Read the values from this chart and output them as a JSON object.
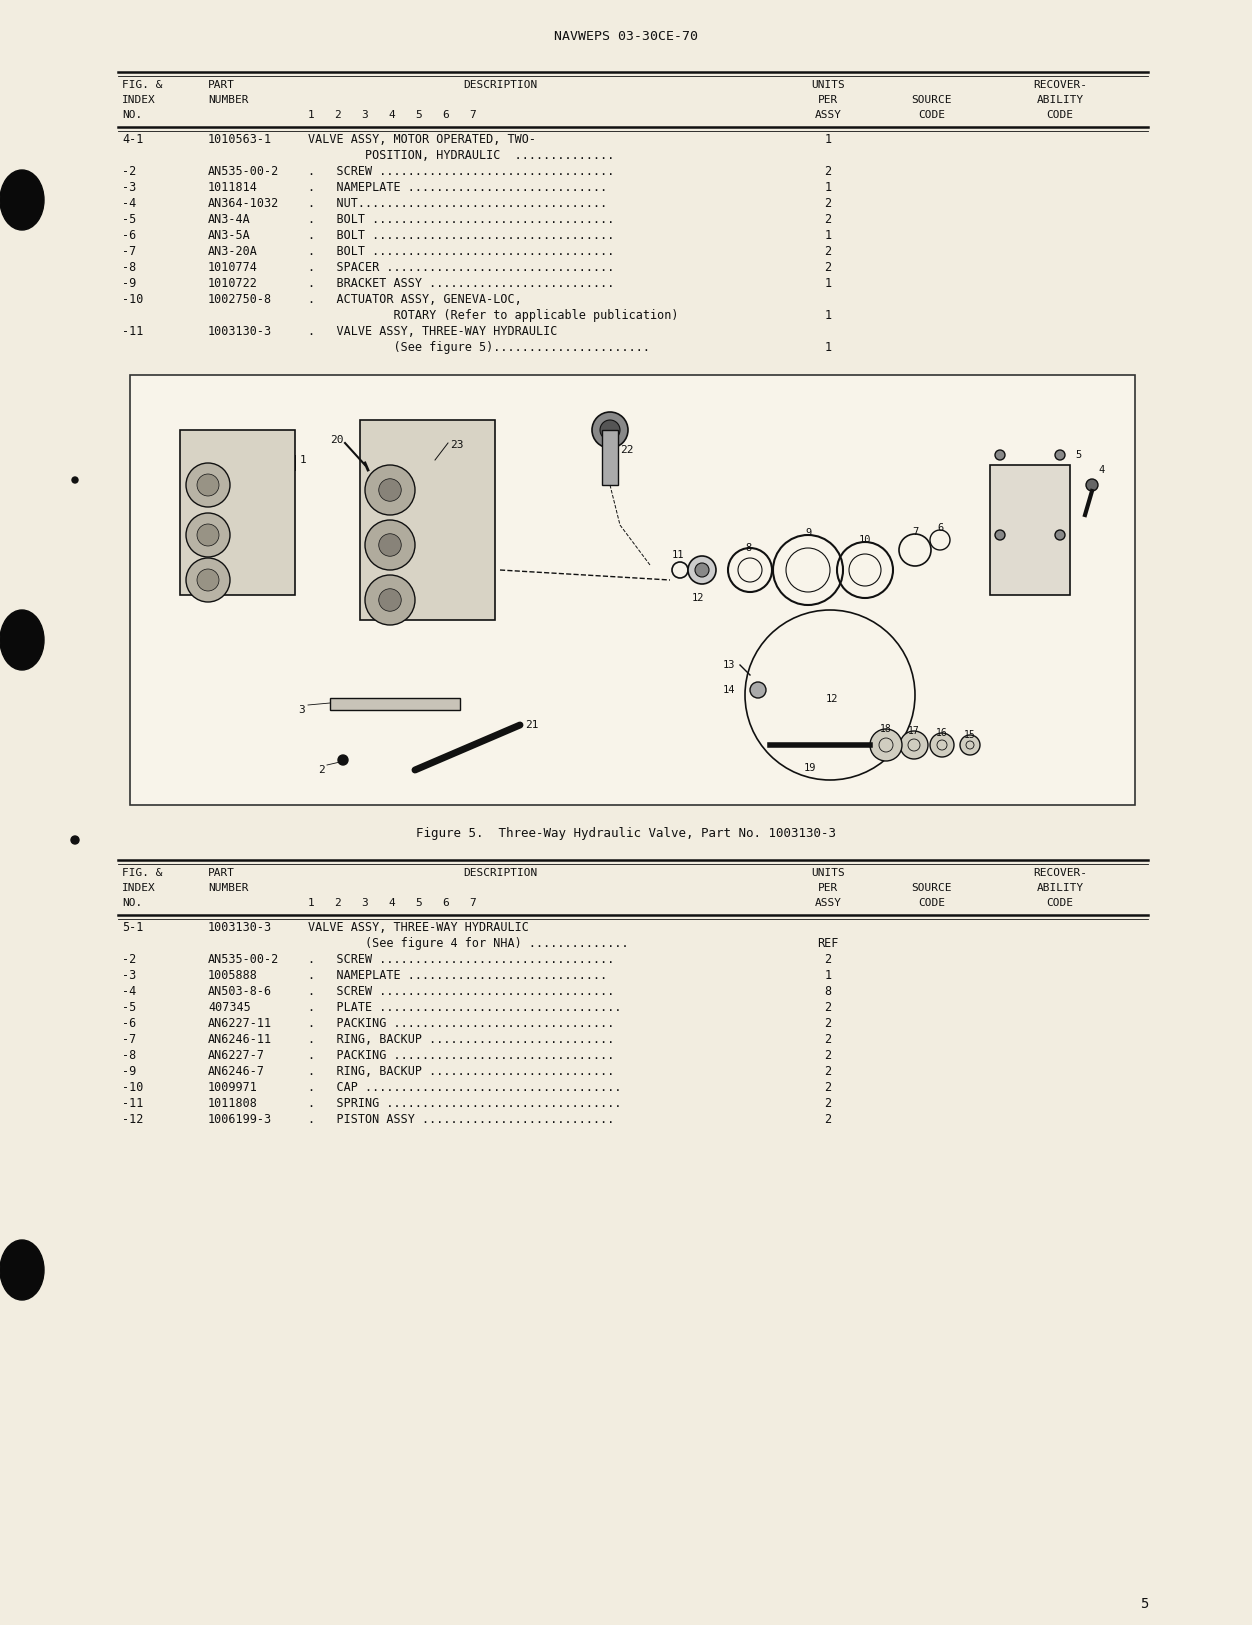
{
  "page_header": "NAVWEPS 03-30CE-70",
  "page_number": "5",
  "bg_color": "#f2ede0",
  "text_color": "#111111",
  "figure_caption": "Figure 5.  Three-Way Hydraulic Valve, Part No. 1003130-3",
  "table1_rows": [
    [
      "4-1",
      "1010563-1",
      "VALVE ASSY, MOTOR OPERATED, TWO-",
      "",
      "1",
      false
    ],
    [
      "",
      "",
      "        POSITION, HYDRAULIC  ..............",
      "",
      "",
      false
    ],
    [
      "-2",
      "AN535-00-2",
      ".   SCREW .................................",
      "",
      "2",
      false
    ],
    [
      "-3",
      "1011814",
      ".   NAMEPLATE ............................",
      "",
      "1",
      false
    ],
    [
      "-4",
      "AN364-1032",
      ".   NUT...................................",
      "",
      "2",
      false
    ],
    [
      "-5",
      "AN3-4A",
      ".   BOLT ..................................",
      "",
      "2",
      false
    ],
    [
      "-6",
      "AN3-5A",
      ".   BOLT ..................................",
      "",
      "1",
      false
    ],
    [
      "-7",
      "AN3-20A",
      ".   BOLT ..................................",
      "",
      "2",
      false
    ],
    [
      "-8",
      "1010774",
      ".   SPACER ................................",
      "",
      "2",
      false
    ],
    [
      "-9",
      "1010722",
      ".   BRACKET ASSY ..........................",
      "",
      "1",
      false
    ],
    [
      "-10",
      "1002750-8",
      ".   ACTUATOR ASSY, GENEVA-LOC,",
      "",
      "",
      false
    ],
    [
      "",
      "",
      "            ROTARY (Refer to applicable publication)",
      "",
      "1",
      false
    ],
    [
      "-11",
      "1003130-3",
      ".   VALVE ASSY, THREE-WAY HYDRAULIC",
      "",
      "",
      false
    ],
    [
      "",
      "",
      "            (See figure 5)......................",
      "",
      "1",
      false
    ]
  ],
  "table2_rows": [
    [
      "5-1",
      "1003130-3",
      "VALVE ASSY, THREE-WAY HYDRAULIC",
      "",
      "",
      false
    ],
    [
      "",
      "",
      "        (See figure 4 for NHA) ..............",
      "",
      "REF",
      false
    ],
    [
      "-2",
      "AN535-00-2",
      ".   SCREW .................................",
      "",
      "2",
      false
    ],
    [
      "-3",
      "1005888",
      ".   NAMEPLATE ............................",
      "",
      "1",
      false
    ],
    [
      "-4",
      "AN503-8-6",
      ".   SCREW .................................",
      "",
      "8",
      false
    ],
    [
      "-5",
      "407345",
      ".   PLATE ..................................",
      "",
      "2",
      false
    ],
    [
      "-6",
      "AN6227-11",
      ".   PACKING ...............................",
      "",
      "2",
      false
    ],
    [
      "-7",
      "AN6246-11",
      ".   RING, BACKUP ..........................",
      "",
      "2",
      false
    ],
    [
      "-8",
      "AN6227-7",
      ".   PACKING ...............................",
      "",
      "2",
      false
    ],
    [
      "-9",
      "AN6246-7",
      ".   RING, BACKUP ..........................",
      "",
      "2",
      false
    ],
    [
      "-10",
      "1009971",
      ".   CAP ....................................",
      "",
      "2",
      false
    ],
    [
      "-11",
      "1011808",
      ".   SPRING .................................",
      "",
      "2",
      false
    ],
    [
      "-12",
      "1006199-3",
      ".   PISTON ASSY ...........................",
      "",
      "2",
      false
    ]
  ]
}
